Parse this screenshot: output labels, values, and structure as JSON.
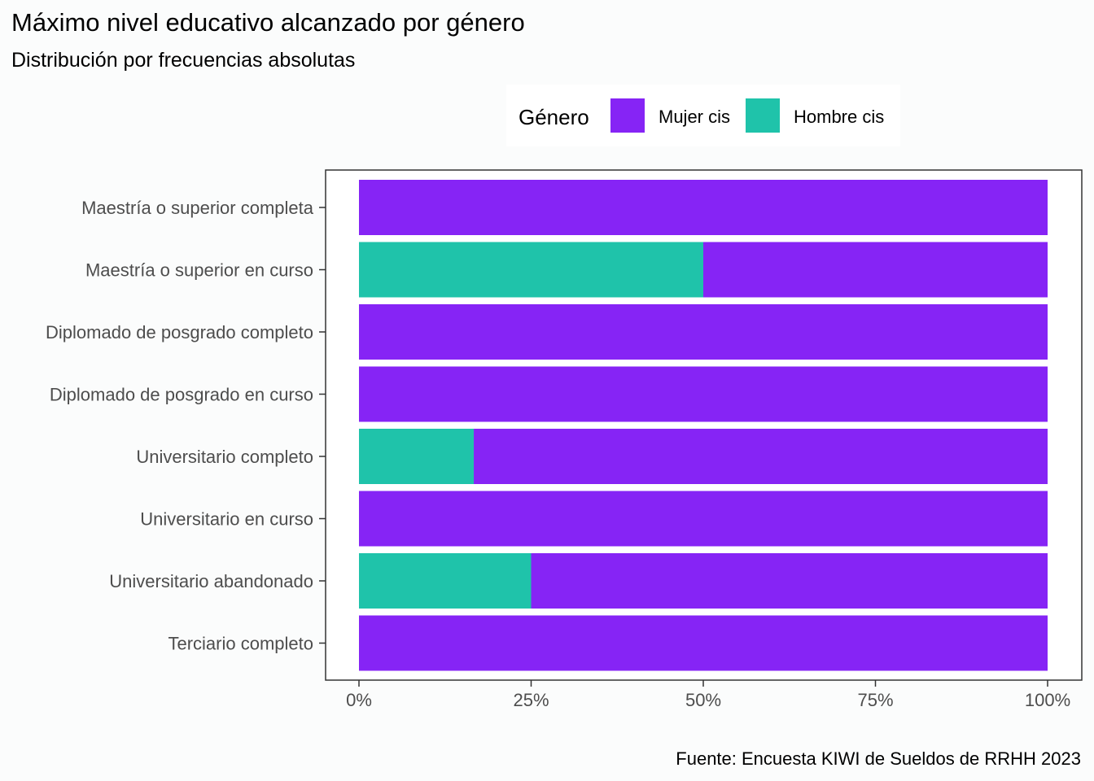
{
  "title": "Máximo nivel educativo alcanzado por género",
  "subtitle": "Distribución por frecuencias absolutas",
  "caption": "Fuente: Encuesta KIWI de Sueldos de RRHH 2023",
  "legend": {
    "title": "Género",
    "items": [
      {
        "label": "Mujer cis",
        "color": "#8624f5"
      },
      {
        "label": "Hombre cis",
        "color": "#1fc3aa"
      }
    ]
  },
  "chart_data": {
    "type": "bar",
    "orientation": "horizontal",
    "stacked": true,
    "normalized": true,
    "categories": [
      "Maestría o superior completa",
      "Maestría o superior en curso",
      "Diplomado de posgrado completo",
      "Diplomado de posgrado en curso",
      "Universitario completo",
      "Universitario en curso",
      "Universitario abandonado",
      "Terciario completo"
    ],
    "series": [
      {
        "name": "Hombre cis",
        "color": "#1fc3aa",
        "values": [
          0,
          0.5,
          0,
          0,
          0.1667,
          0,
          0.25,
          0
        ]
      },
      {
        "name": "Mujer cis",
        "color": "#8624f5",
        "values": [
          1,
          0.5,
          1,
          1,
          0.8333,
          1,
          0.75,
          1
        ]
      }
    ],
    "xlim": [
      0,
      1
    ],
    "xticks": [
      0,
      0.25,
      0.5,
      0.75,
      1
    ],
    "xtick_labels": [
      "0%",
      "25%",
      "50%",
      "75%",
      "100%"
    ],
    "xlabel": "",
    "ylabel": "",
    "grid": false,
    "legend_position": "top"
  }
}
